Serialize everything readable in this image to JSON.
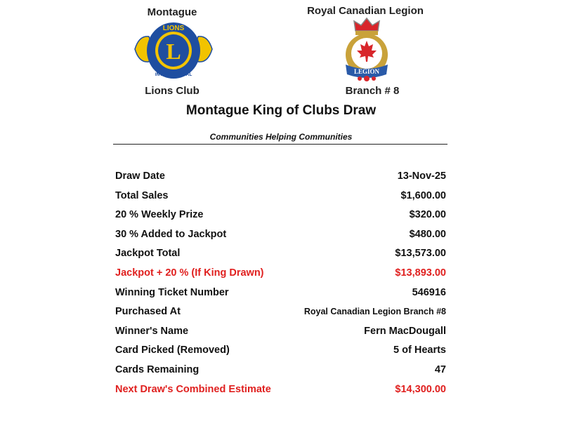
{
  "header": {
    "left_top": "Montague",
    "left_bottom": "Lions Club",
    "right_top": "Royal Canadian Legion",
    "right_bottom": "Branch # 8",
    "lions_logo_text": [
      "LIONS",
      "L",
      "INTERNATIONAL"
    ],
    "legion_logo_text": [
      "LEGION"
    ]
  },
  "title": "Montague King of Clubs Draw",
  "subtitle": "Communities Helping Communities",
  "colors": {
    "highlight": "#e0201f",
    "lions_blue": "#1f4ea0",
    "lions_gold": "#f2c300",
    "legion_red": "#d8262b"
  },
  "rows": [
    {
      "label": "Draw Date",
      "value": "13-Nov-25",
      "highlight": false
    },
    {
      "label": "Total Sales",
      "value": "$1,600.00",
      "highlight": false
    },
    {
      "label": "20 % Weekly Prize",
      "value": "$320.00",
      "highlight": false
    },
    {
      "label": "30 % Added to Jackpot",
      "value": "$480.00",
      "highlight": false
    },
    {
      "label": "Jackpot Total",
      "value": "$13,573.00",
      "highlight": false
    },
    {
      "label": "Jackpot + 20 % (If King Drawn)",
      "value": "$13,893.00",
      "highlight": true
    },
    {
      "label": "Winning Ticket Number",
      "value": "546916",
      "highlight": false
    },
    {
      "label": "Purchased At",
      "value": "Royal Canadian Legion Branch #8",
      "highlight": false
    },
    {
      "label": "Winner's Name",
      "value": "Fern MacDougall",
      "highlight": false
    },
    {
      "label": "Card Picked (Removed)",
      "value": "5 of Hearts",
      "highlight": false
    },
    {
      "label": "Cards Remaining",
      "value": "47",
      "highlight": false
    },
    {
      "label": "Next Draw's Combined Estimate",
      "value": "$14,300.00",
      "highlight": true
    }
  ]
}
